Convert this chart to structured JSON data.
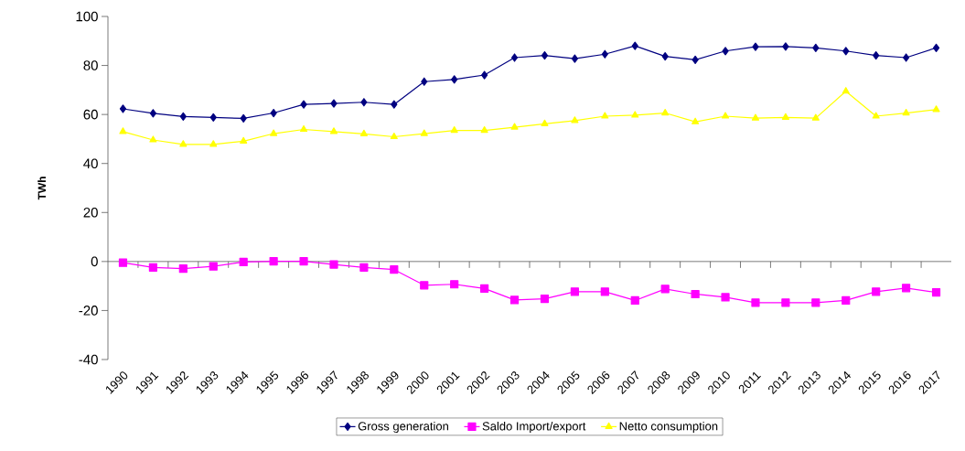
{
  "chart_data": {
    "type": "line",
    "ylabel": "TWh",
    "categories": [
      "1990",
      "1991",
      "1992",
      "1993",
      "1994",
      "1995",
      "1996",
      "1997",
      "1998",
      "1999",
      "2000",
      "2001",
      "2002",
      "2003",
      "2004",
      "2005",
      "2006",
      "2007",
      "2008",
      "2009",
      "2010",
      "2011",
      "2012",
      "2013",
      "2014",
      "2015",
      "2016",
      "2017"
    ],
    "series": [
      {
        "name": "Gross generation",
        "color": "#000080",
        "marker": "diamond",
        "values": [
          62.3,
          60.5,
          59.2,
          58.8,
          58.4,
          60.6,
          64.1,
          64.5,
          65.0,
          64.1,
          73.4,
          74.3,
          76.1,
          83.2,
          84.1,
          82.8,
          84.6,
          88.0,
          83.7,
          82.3,
          85.9,
          87.6,
          87.7,
          87.2,
          85.9,
          84.1,
          83.2,
          87.2
        ]
      },
      {
        "name": "Saldo Import/export",
        "color": "#ff00ff",
        "marker": "square",
        "values": [
          -0.5,
          -2.4,
          -2.9,
          -2.0,
          -0.2,
          0.1,
          0.1,
          -1.2,
          -2.4,
          -3.3,
          -9.7,
          -9.3,
          -11.0,
          -15.7,
          -15.2,
          -12.3,
          -12.3,
          -15.9,
          -11.2,
          -13.3,
          -14.6,
          -16.8,
          -16.8,
          -16.8,
          -15.9,
          -12.3,
          -10.8,
          -12.6
        ]
      },
      {
        "name": "Netto consumption",
        "color": "#ffff00",
        "marker": "triangle",
        "values": [
          53.0,
          49.6,
          47.8,
          47.8,
          49.1,
          52.2,
          53.9,
          53.0,
          52.1,
          50.9,
          52.2,
          53.5,
          53.5,
          54.8,
          56.2,
          57.5,
          59.3,
          59.7,
          60.6,
          57.0,
          59.3,
          58.5,
          58.8,
          58.5,
          69.5,
          59.3,
          60.6,
          62.0
        ]
      }
    ],
    "ylim": [
      -40,
      100
    ],
    "yticks": [
      -40,
      -20,
      0,
      20,
      40,
      60,
      80,
      100
    ],
    "legend": "bottom",
    "line_style": "solid"
  }
}
